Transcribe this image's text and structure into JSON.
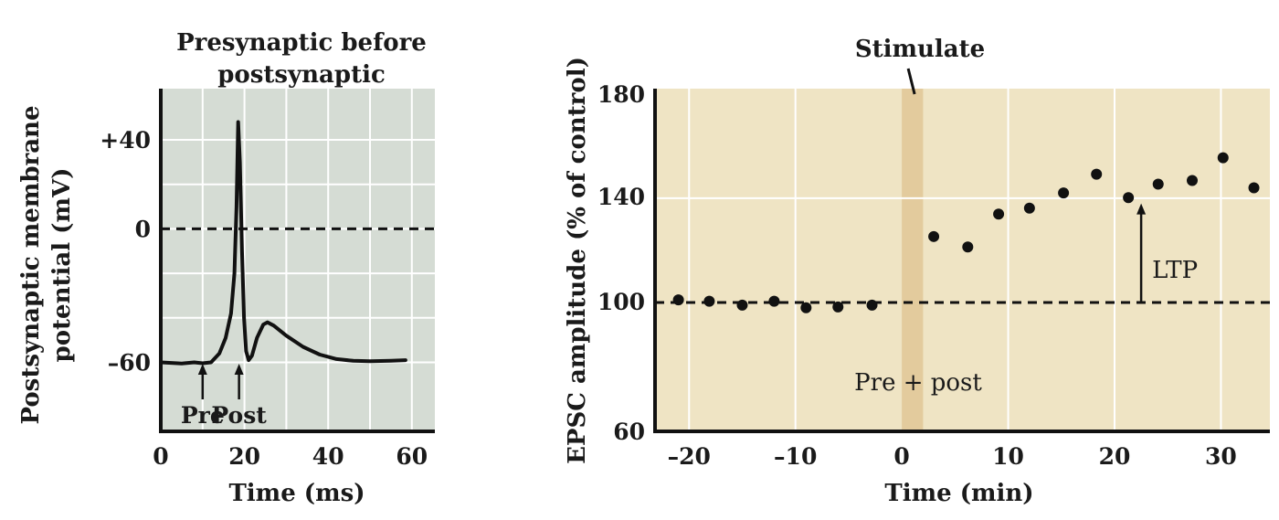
{
  "chart_data": [
    {
      "type": "line",
      "title": "Presynaptic before postsynaptic",
      "title_lines": [
        "Presynaptic before",
        "postsynaptic"
      ],
      "xlabel": "Time (ms)",
      "ylabel_lines": [
        "Postsynaptic membrane",
        "potential (mV)"
      ],
      "xlim": [
        0,
        65.5
      ],
      "ylim": [
        -91,
        63
      ],
      "xticks": [
        0,
        20,
        40,
        60
      ],
      "xtick_labels": [
        "0",
        "20",
        "40",
        "60"
      ],
      "yticks": [
        40,
        0,
        -60
      ],
      "ytick_labels": [
        "+40",
        "0",
        "–60"
      ],
      "grid": true,
      "grid_x": [
        10,
        20,
        30,
        40,
        50,
        60
      ],
      "grid_y": [
        40,
        20,
        0,
        -20,
        -40,
        -60
      ],
      "reference_line": {
        "y": 0,
        "style": "dashed"
      },
      "background": "#d5dcd4",
      "series": [
        {
          "name": "membrane potential",
          "x": [
            0,
            3,
            5,
            8,
            10,
            12,
            14,
            15.5,
            16.8,
            17.6,
            18.1,
            18.5,
            18.9,
            19.4,
            19.9,
            20.4,
            21.0,
            21.8,
            23,
            24.5,
            25.5,
            27,
            30,
            34,
            38,
            42,
            46,
            50,
            55,
            58.5
          ],
          "y": [
            -60,
            -60.3,
            -60.5,
            -60,
            -60.4,
            -60,
            -56,
            -49,
            -38,
            -20,
            10,
            48,
            30,
            -10,
            -40,
            -55,
            -59,
            -57,
            -49,
            -43,
            -42,
            -43.5,
            -48,
            -53,
            -56.5,
            -58.5,
            -59.3,
            -59.5,
            -59.3,
            -59
          ]
        }
      ],
      "annotations": [
        {
          "text": "Pre",
          "x": 10
        },
        {
          "text": "Post",
          "x": 18.7
        }
      ]
    },
    {
      "type": "scatter",
      "xlabel": "Time (min)",
      "ylabel": "EPSC amplitude (% of control)",
      "xlim": [
        -23.2,
        34.6
      ],
      "ylim": [
        50.6,
        182
      ],
      "xticks": [
        -20,
        -10,
        0,
        10,
        20,
        30
      ],
      "xtick_labels": [
        "–20",
        "–10",
        "0",
        "10",
        "20",
        "30"
      ],
      "yticks": [
        180,
        140,
        100,
        60
      ],
      "ytick_labels": [
        "180",
        "140",
        "100",
        "60"
      ],
      "grid": true,
      "grid_x": [
        -20,
        -10,
        0,
        10,
        20,
        30
      ],
      "grid_y": [
        140
      ],
      "reference_line": {
        "y": 100,
        "style": "dashed"
      },
      "background": "#efe4c4",
      "stimulus_band": {
        "x0": 0,
        "x1": 2,
        "color": "#e3cb9d",
        "label": "Stimulate",
        "inner_label": "Pre + post"
      },
      "series": [
        {
          "name": "EPSC",
          "x": [
            -21,
            -18.1,
            -15,
            -12,
            -9,
            -6,
            -2.8,
            3,
            6.2,
            9.1,
            12,
            15.2,
            18.3,
            21.3,
            24.1,
            27.3,
            30.2,
            33.1
          ],
          "y": [
            101,
            100.5,
            99,
            100.5,
            98,
            98.3,
            99,
            125.3,
            121.3,
            133.9,
            136.2,
            142,
            149.2,
            140.2,
            145.4,
            146.8,
            155.5,
            144
          ]
        }
      ],
      "annotations": [
        {
          "text": "LTP",
          "arrow_x": 22.5,
          "from_y": 100,
          "to_y": 138
        }
      ]
    }
  ]
}
